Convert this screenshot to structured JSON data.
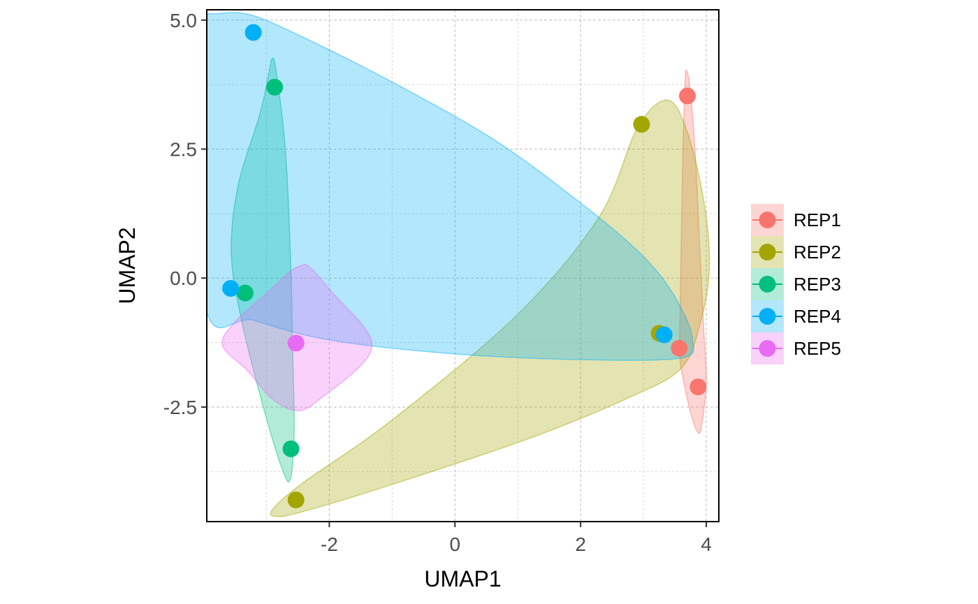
{
  "chart_data": {
    "type": "scatter",
    "title": "",
    "xlabel": "UMAP1",
    "ylabel": "UMAP2",
    "xlim": [
      -3.95,
      4.2
    ],
    "ylim": [
      -4.72,
      5.2
    ],
    "x_ticks": [
      -2,
      0,
      2,
      4
    ],
    "x_tick_labels": [
      "-2",
      "0",
      "2",
      "4"
    ],
    "y_ticks": [
      -2.5,
      0.0,
      2.5,
      5.0
    ],
    "y_tick_labels": [
      "-2.5",
      "0.0",
      "2.5",
      "5.0"
    ],
    "grid": true,
    "legend_position": "right",
    "series": [
      {
        "name": "REP1",
        "color": "#F8766D",
        "points": [
          [
            3.7,
            3.53
          ],
          [
            3.57,
            -1.36
          ],
          [
            3.87,
            -2.11
          ]
        ],
        "hull": [
          [
            3.68,
            4.03
          ],
          [
            3.74,
            3.7
          ],
          [
            3.82,
            2.5
          ],
          [
            3.9,
            0.5
          ],
          [
            3.96,
            -1.0
          ],
          [
            4.0,
            -2.0
          ],
          [
            3.92,
            -2.9
          ],
          [
            3.85,
            -2.96
          ],
          [
            3.75,
            -2.6
          ],
          [
            3.64,
            -2.0
          ],
          [
            3.58,
            -1.4
          ],
          [
            3.6,
            0.5
          ],
          [
            3.63,
            2.5
          ],
          [
            3.66,
            3.7
          ]
        ]
      },
      {
        "name": "REP2",
        "color": "#A3A500",
        "points": [
          [
            2.97,
            2.98
          ],
          [
            3.25,
            -1.07
          ],
          [
            -2.53,
            -4.3
          ]
        ],
        "hull": [
          [
            3.37,
            3.45
          ],
          [
            3.68,
            2.9
          ],
          [
            3.96,
            1.5
          ],
          [
            4.05,
            0.2
          ],
          [
            3.9,
            -0.9
          ],
          [
            3.6,
            -1.75
          ],
          [
            2.8,
            -2.3
          ],
          [
            1.2,
            -3.1
          ],
          [
            -1.0,
            -4.0
          ],
          [
            -2.4,
            -4.52
          ],
          [
            -2.84,
            -4.62
          ],
          [
            -2.9,
            -4.48
          ],
          [
            -2.4,
            -3.95
          ],
          [
            -1.0,
            -2.75
          ],
          [
            1.0,
            -0.7
          ],
          [
            2.3,
            1.2
          ],
          [
            2.9,
            2.9
          ]
        ]
      },
      {
        "name": "REP3",
        "color": "#00BF7D",
        "points": [
          [
            -2.87,
            3.7
          ],
          [
            -3.34,
            -0.29
          ],
          [
            -2.61,
            -3.31
          ]
        ],
        "hull": [
          [
            -2.91,
            4.25
          ],
          [
            -2.85,
            4.05
          ],
          [
            -2.7,
            2.5
          ],
          [
            -2.62,
            0.5
          ],
          [
            -2.58,
            -1.5
          ],
          [
            -2.56,
            -3.0
          ],
          [
            -2.62,
            -3.9
          ],
          [
            -2.75,
            -3.7
          ],
          [
            -3.05,
            -2.5
          ],
          [
            -3.4,
            -0.8
          ],
          [
            -3.56,
            0.5
          ],
          [
            -3.45,
            1.8
          ],
          [
            -3.1,
            3.2
          ],
          [
            -2.95,
            4.05
          ]
        ]
      },
      {
        "name": "REP4",
        "color": "#00B0F6",
        "points": [
          [
            -3.21,
            4.76
          ],
          [
            -3.57,
            -0.2
          ],
          [
            3.33,
            -1.1
          ]
        ],
        "hull": [
          [
            -3.83,
            5.12
          ],
          [
            -3.25,
            5.1
          ],
          [
            -2.3,
            4.6
          ],
          [
            -1.0,
            3.8
          ],
          [
            0.6,
            2.7
          ],
          [
            1.9,
            1.55
          ],
          [
            2.8,
            0.65
          ],
          [
            3.3,
            0.0
          ],
          [
            3.62,
            -0.63
          ],
          [
            3.78,
            -1.2
          ],
          [
            3.6,
            -1.55
          ],
          [
            2.0,
            -1.58
          ],
          [
            0.0,
            -1.47
          ],
          [
            -2.0,
            -1.2
          ],
          [
            -3.2,
            -0.82
          ],
          [
            -3.98,
            -0.5
          ],
          [
            -4.05,
            4.5
          ],
          [
            -3.98,
            5.06
          ]
        ]
      },
      {
        "name": "REP5",
        "color": "#E76BF3",
        "points": [
          [
            -2.53,
            -1.26
          ]
        ],
        "hull": [
          [
            -2.45,
            0.24
          ],
          [
            -2.3,
            0.2
          ],
          [
            -1.9,
            -0.35
          ],
          [
            -1.48,
            -0.9
          ],
          [
            -1.32,
            -1.3
          ],
          [
            -1.5,
            -1.7
          ],
          [
            -2.05,
            -2.25
          ],
          [
            -2.47,
            -2.57
          ],
          [
            -2.9,
            -2.35
          ],
          [
            -3.3,
            -1.8
          ],
          [
            -3.7,
            -1.3
          ],
          [
            -3.5,
            -0.85
          ],
          [
            -3.0,
            -0.3
          ],
          [
            -2.65,
            0.1
          ]
        ]
      }
    ]
  }
}
